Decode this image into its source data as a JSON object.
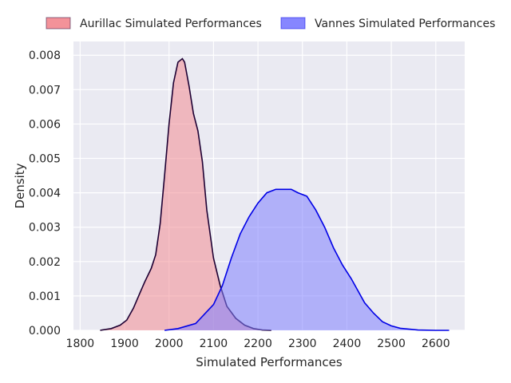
{
  "chart_data": {
    "type": "area",
    "title": "",
    "xlabel": "Simulated Performances",
    "ylabel": "Density",
    "xlim": [
      1785,
      2665
    ],
    "ylim": [
      0,
      0.0084
    ],
    "xticks": [
      1800,
      1900,
      2000,
      2100,
      2200,
      2300,
      2400,
      2500,
      2600
    ],
    "xtick_labels": [
      "1800",
      "1900",
      "2000",
      "2100",
      "2200",
      "2300",
      "2400",
      "2500",
      "2600"
    ],
    "yticks": [
      0,
      0.001,
      0.002,
      0.003,
      0.004,
      0.005,
      0.006,
      0.007,
      0.008
    ],
    "ytick_labels": [
      "0.000",
      "0.001",
      "0.002",
      "0.003",
      "0.004",
      "0.005",
      "0.006",
      "0.007",
      "0.008"
    ],
    "grid": true,
    "background": "#eaeaf2",
    "legend_position": "top-center",
    "series": [
      {
        "name": "Aurillac Simulated Performances",
        "fill": "#f28c94",
        "line": "#1e0033",
        "x": [
          1845,
          1870,
          1890,
          1905,
          1920,
          1935,
          1945,
          1960,
          1970,
          1980,
          1990,
          2000,
          2010,
          2020,
          2030,
          2035,
          2045,
          2055,
          2065,
          2075,
          2085,
          2100,
          2115,
          2130,
          2150,
          2170,
          2190,
          2210,
          2230
        ],
        "y": [
          0,
          5e-05,
          0.00015,
          0.0003,
          0.00065,
          0.0011,
          0.0014,
          0.0018,
          0.0022,
          0.0031,
          0.0045,
          0.006,
          0.0072,
          0.0078,
          0.0079,
          0.0078,
          0.0071,
          0.0063,
          0.0058,
          0.0049,
          0.0035,
          0.0021,
          0.0013,
          0.0007,
          0.00035,
          0.00015,
          5e-05,
          1e-05,
          0
        ]
      },
      {
        "name": "Vannes Simulated Performances",
        "fill": "#8080ff",
        "line": "#0000e6",
        "x": [
          1990,
          2020,
          2060,
          2100,
          2120,
          2140,
          2160,
          2180,
          2200,
          2220,
          2240,
          2260,
          2275,
          2290,
          2310,
          2330,
          2350,
          2370,
          2390,
          2410,
          2440,
          2460,
          2480,
          2500,
          2520,
          2560,
          2600,
          2630
        ],
        "y": [
          0,
          5e-05,
          0.0002,
          0.00075,
          0.0013,
          0.0021,
          0.0028,
          0.0033,
          0.0037,
          0.004,
          0.0041,
          0.0041,
          0.0041,
          0.004,
          0.0039,
          0.0035,
          0.003,
          0.0024,
          0.0019,
          0.0015,
          0.0008,
          0.0005,
          0.00025,
          0.00013,
          6e-05,
          1e-05,
          0,
          0
        ]
      }
    ]
  }
}
